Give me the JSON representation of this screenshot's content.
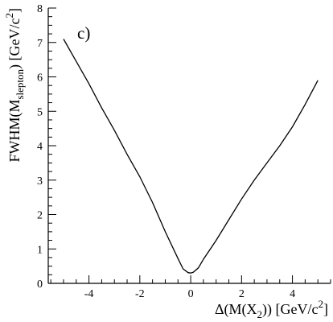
{
  "chart_data": {
    "type": "line",
    "panel_label": "c)",
    "xlabel": {
      "prefix": "Δ(M(X",
      "sub": "2",
      "mid": ")) [GeV/c",
      "sup": "2",
      "suffix": "]"
    },
    "ylabel": {
      "prefix": "FWHM(M",
      "sub": "slepton",
      "mid": ") [GeV/c",
      "sup": "2",
      "suffix": "]"
    },
    "xlim": [
      -5.6,
      5.5
    ],
    "ylim": [
      0,
      8
    ],
    "x_major_ticks": [
      -4,
      -2,
      0,
      2,
      4
    ],
    "x_tick_labels": [
      "-4",
      "-2",
      "0",
      "2",
      "4"
    ],
    "y_major_ticks": [
      0,
      1,
      2,
      3,
      4,
      5,
      6,
      7,
      8
    ],
    "y_tick_labels": [
      "0",
      "1",
      "2",
      "3",
      "4",
      "5",
      "6",
      "7",
      "8"
    ],
    "grid": false,
    "series": [
      {
        "x": [
          -5.0,
          -4.5,
          -4.0,
          -3.5,
          -3.0,
          -2.5,
          -2.0,
          -1.5,
          -1.0,
          -0.5,
          -0.3,
          -0.1,
          0.0,
          0.1,
          0.3,
          0.5,
          1.0,
          1.5,
          2.0,
          2.5,
          3.0,
          3.5,
          4.0,
          4.5,
          5.0
        ],
        "y": [
          7.1,
          6.45,
          5.8,
          5.1,
          4.45,
          3.75,
          3.1,
          2.35,
          1.5,
          0.72,
          0.42,
          0.31,
          0.3,
          0.32,
          0.45,
          0.7,
          1.25,
          1.85,
          2.45,
          3.0,
          3.5,
          4.0,
          4.55,
          5.2,
          5.9
        ]
      }
    ]
  }
}
